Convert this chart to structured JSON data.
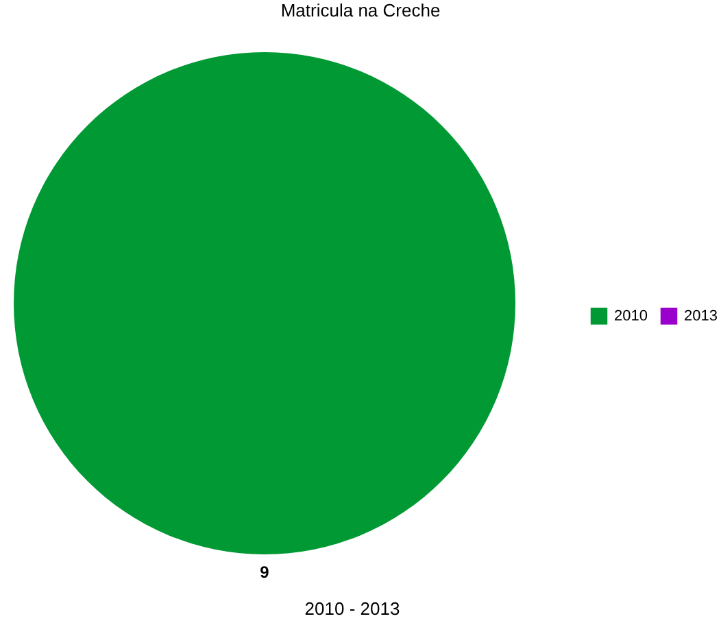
{
  "chart_data": {
    "type": "pie",
    "title": "Matricula na Creche",
    "categories": [
      "2010",
      "2013"
    ],
    "values": [
      9,
      0
    ],
    "colors": [
      "#009933",
      "#9900cc"
    ],
    "data_labels": true,
    "legend": "right",
    "annotations": [
      "2010 - 2013"
    ]
  }
}
